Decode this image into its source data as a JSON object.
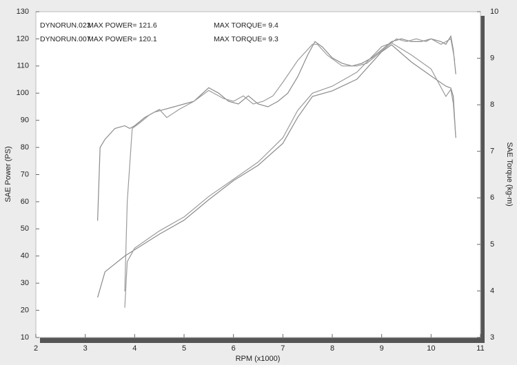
{
  "chart_data": {
    "type": "line",
    "xlabel": "RPM (x1000)",
    "ylabel": "SAE Power (PS)",
    "y2label": "SAE Torque (kg-m)",
    "xlim": [
      2,
      11
    ],
    "xticks": [
      2,
      3,
      4,
      5,
      6,
      7,
      8,
      9,
      10,
      11
    ],
    "ylim": [
      10,
      130
    ],
    "yticks": [
      10,
      20,
      30,
      40,
      50,
      60,
      70,
      80,
      90,
      100,
      110,
      120,
      130
    ],
    "y2lim": [
      3,
      10
    ],
    "y2ticks": [
      3,
      4,
      5,
      6,
      7,
      8,
      9,
      10
    ],
    "legend": [
      {
        "run": "DYNORUN.023",
        "max_power": "MAX POWER= 121.6",
        "max_torque": "MAX TORQUE= 9.4"
      },
      {
        "run": "DYNORUN.007",
        "max_power": "MAX POWER= 120.1",
        "max_torque": "MAX TORQUE= 9.3"
      }
    ],
    "series": [
      {
        "color": "#8a8a8a",
        "axis": "y",
        "x": [
          3.25,
          3.3,
          3.4,
          3.6,
          3.8,
          3.9,
          4.0,
          4.2,
          4.4,
          4.6,
          4.8,
          5.0,
          5.2,
          5.5,
          5.7,
          5.9,
          6.1,
          6.3,
          6.5,
          6.7,
          6.9,
          7.1,
          7.3,
          7.5,
          7.65,
          7.8,
          8.0,
          8.2,
          8.4,
          8.6,
          8.8,
          9.0,
          9.2,
          9.4,
          9.6,
          9.8,
          10.0,
          10.2,
          10.3,
          10.4,
          10.45,
          10.5
        ],
        "values": [
          53,
          80,
          83,
          87,
          88,
          87,
          88,
          91,
          93,
          94,
          95,
          96,
          97,
          102,
          100,
          97,
          96,
          99,
          96,
          95,
          97,
          100,
          106,
          114,
          119,
          117,
          113,
          111,
          110,
          111,
          113,
          116,
          119,
          120,
          119,
          119,
          120,
          119,
          118,
          121,
          116,
          107
        ]
      },
      {
        "color": "#9a9a9a",
        "axis": "y",
        "x": [
          3.8,
          3.85,
          3.95,
          4.1,
          4.3,
          4.5,
          4.65,
          4.9,
          5.2,
          5.5,
          5.8,
          6.0,
          6.2,
          6.4,
          6.6,
          6.8,
          7.0,
          7.3,
          7.6,
          7.7,
          7.9,
          8.2,
          8.5,
          8.7,
          8.9,
          9.1,
          9.3,
          9.5,
          9.7,
          9.9,
          10.0,
          10.2,
          10.4,
          10.48
        ],
        "values": [
          27,
          60,
          87,
          89,
          92,
          94,
          91,
          94,
          97,
          101,
          98,
          97,
          99,
          96,
          97,
          99,
          104,
          112,
          118,
          118,
          114,
          110,
          110,
          111,
          114,
          117,
          120,
          119,
          120,
          119,
          120,
          118,
          120,
          112
        ]
      },
      {
        "color": "#8a8a8a",
        "axis": "y2",
        "x": [
          3.25,
          3.4,
          3.8,
          4.5,
          5.0,
          5.5,
          6.0,
          6.5,
          7.0,
          7.3,
          7.6,
          8.0,
          8.5,
          9.0,
          9.2,
          9.6,
          10.0,
          10.3,
          10.4,
          10.45,
          10.5
        ],
        "values": [
          3.86,
          4.41,
          4.75,
          5.22,
          5.52,
          5.96,
          6.37,
          6.7,
          7.17,
          7.73,
          8.18,
          8.3,
          8.55,
          9.14,
          9.29,
          8.92,
          8.62,
          8.4,
          8.36,
          8.18,
          7.29
        ]
      },
      {
        "color": "#9a9a9a",
        "axis": "y2",
        "x": [
          3.8,
          3.85,
          4.0,
          4.5,
          5.0,
          5.5,
          6.0,
          6.5,
          7.0,
          7.3,
          7.6,
          8.0,
          8.5,
          9.0,
          9.2,
          9.6,
          10.0,
          10.3,
          10.4,
          10.45,
          10.5
        ],
        "values": [
          3.64,
          4.63,
          4.92,
          5.29,
          5.59,
          6.03,
          6.4,
          6.77,
          7.29,
          7.88,
          8.25,
          8.4,
          8.7,
          9.25,
          9.33,
          9.07,
          8.77,
          8.18,
          8.33,
          8.03,
          7.29
        ]
      }
    ]
  }
}
